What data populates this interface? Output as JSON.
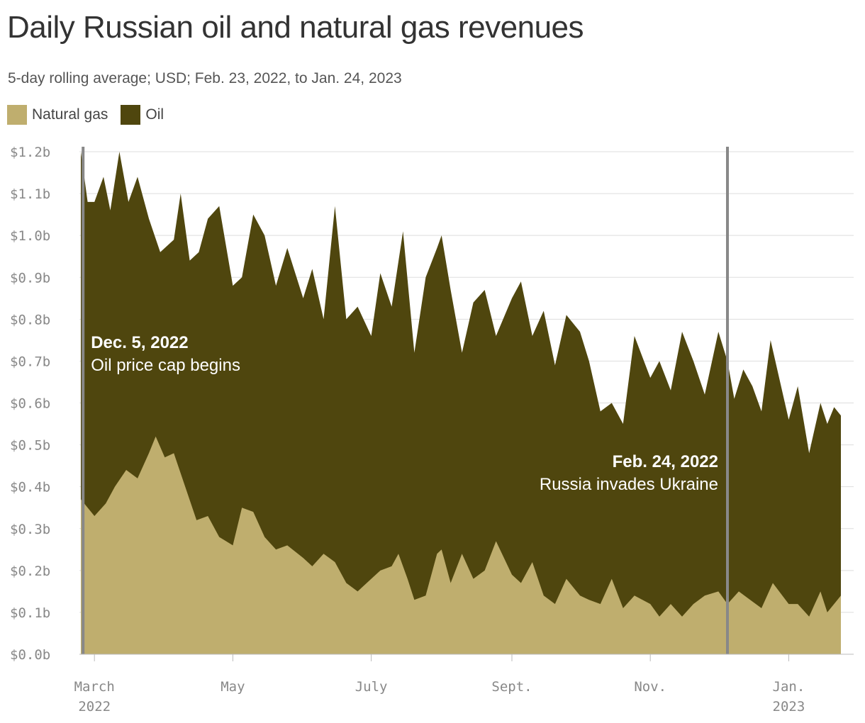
{
  "title": "Daily Russian oil and natural gas revenues",
  "subtitle": "5-day rolling average; USD; Feb. 23, 2022, to Jan. 24, 2023",
  "legend": [
    {
      "label": "Natural gas",
      "color": "#bfae6e"
    },
    {
      "label": "Oil",
      "color": "#4f460e"
    }
  ],
  "annotations": [
    {
      "date": "2022-12-05",
      "title": "Dec. 5, 2022",
      "text": "Oil price cap begins"
    },
    {
      "date": "2022-02-24",
      "title": "Feb. 24, 2022",
      "text": "Russia invades Ukraine"
    }
  ],
  "chart_data": {
    "type": "area",
    "stacked": true,
    "title": "Daily Russian oil and natural gas revenues",
    "x_range": [
      "2022-02-23",
      "2023-01-24"
    ],
    "ylim": [
      0,
      1.2
    ],
    "y_unit": "USD billions",
    "y_ticks": [
      "$0.0b",
      "$0.1b",
      "$0.2b",
      "$0.3b",
      "$0.4b",
      "$0.5b",
      "$0.6b",
      "$0.7b",
      "$0.8b",
      "$0.9b",
      "$1.0b",
      "$1.1b",
      "$1.2b"
    ],
    "x_ticks": [
      {
        "date": "2022-03-01",
        "line1": "March",
        "line2": "2022"
      },
      {
        "date": "2022-05-01",
        "line1": "May",
        "line2": ""
      },
      {
        "date": "2022-07-01",
        "line1": "July",
        "line2": ""
      },
      {
        "date": "2022-09-01",
        "line1": "Sept.",
        "line2": ""
      },
      {
        "date": "2022-11-01",
        "line1": "Nov.",
        "line2": ""
      },
      {
        "date": "2023-01-01",
        "line1": "Jan.",
        "line2": "2023"
      }
    ],
    "grid": true,
    "legend_position": "top-left",
    "series": [
      {
        "name": "Natural gas",
        "color": "#bfae6e",
        "points": [
          [
            "2022-02-23",
            0.37
          ],
          [
            "2022-03-01",
            0.33
          ],
          [
            "2022-03-06",
            0.36
          ],
          [
            "2022-03-10",
            0.4
          ],
          [
            "2022-03-15",
            0.44
          ],
          [
            "2022-03-20",
            0.42
          ],
          [
            "2022-03-25",
            0.48
          ],
          [
            "2022-03-28",
            0.52
          ],
          [
            "2022-04-01",
            0.47
          ],
          [
            "2022-04-05",
            0.48
          ],
          [
            "2022-04-10",
            0.4
          ],
          [
            "2022-04-15",
            0.32
          ],
          [
            "2022-04-20",
            0.33
          ],
          [
            "2022-04-25",
            0.28
          ],
          [
            "2022-05-01",
            0.26
          ],
          [
            "2022-05-05",
            0.35
          ],
          [
            "2022-05-10",
            0.34
          ],
          [
            "2022-05-15",
            0.28
          ],
          [
            "2022-05-20",
            0.25
          ],
          [
            "2022-05-25",
            0.26
          ],
          [
            "2022-06-01",
            0.23
          ],
          [
            "2022-06-05",
            0.21
          ],
          [
            "2022-06-10",
            0.24
          ],
          [
            "2022-06-15",
            0.22
          ],
          [
            "2022-06-20",
            0.17
          ],
          [
            "2022-06-25",
            0.15
          ],
          [
            "2022-07-01",
            0.18
          ],
          [
            "2022-07-05",
            0.2
          ],
          [
            "2022-07-10",
            0.21
          ],
          [
            "2022-07-13",
            0.24
          ],
          [
            "2022-07-17",
            0.18
          ],
          [
            "2022-07-20",
            0.13
          ],
          [
            "2022-07-25",
            0.14
          ],
          [
            "2022-07-30",
            0.24
          ],
          [
            "2022-08-01",
            0.25
          ],
          [
            "2022-08-05",
            0.17
          ],
          [
            "2022-08-10",
            0.24
          ],
          [
            "2022-08-15",
            0.18
          ],
          [
            "2022-08-20",
            0.2
          ],
          [
            "2022-08-25",
            0.27
          ],
          [
            "2022-09-01",
            0.19
          ],
          [
            "2022-09-05",
            0.17
          ],
          [
            "2022-09-10",
            0.22
          ],
          [
            "2022-09-15",
            0.14
          ],
          [
            "2022-09-20",
            0.12
          ],
          [
            "2022-09-25",
            0.18
          ],
          [
            "2022-10-01",
            0.14
          ],
          [
            "2022-10-05",
            0.13
          ],
          [
            "2022-10-10",
            0.12
          ],
          [
            "2022-10-15",
            0.18
          ],
          [
            "2022-10-20",
            0.11
          ],
          [
            "2022-10-25",
            0.14
          ],
          [
            "2022-11-01",
            0.12
          ],
          [
            "2022-11-05",
            0.09
          ],
          [
            "2022-11-10",
            0.12
          ],
          [
            "2022-11-15",
            0.09
          ],
          [
            "2022-11-20",
            0.12
          ],
          [
            "2022-11-25",
            0.14
          ],
          [
            "2022-12-01",
            0.15
          ],
          [
            "2022-12-05",
            0.12
          ],
          [
            "2022-12-10",
            0.15
          ],
          [
            "2022-12-15",
            0.13
          ],
          [
            "2022-12-20",
            0.11
          ],
          [
            "2022-12-25",
            0.17
          ],
          [
            "2023-01-01",
            0.12
          ],
          [
            "2023-01-05",
            0.12
          ],
          [
            "2023-01-10",
            0.09
          ],
          [
            "2023-01-15",
            0.15
          ],
          [
            "2023-01-18",
            0.1
          ],
          [
            "2023-01-21",
            0.12
          ],
          [
            "2023-01-24",
            0.14
          ]
        ]
      },
      {
        "name": "Oil",
        "color": "#4f460e",
        "points": [
          [
            "2022-02-23",
            1.2
          ],
          [
            "2022-02-26",
            1.08
          ],
          [
            "2022-03-01",
            1.08
          ],
          [
            "2022-03-05",
            1.14
          ],
          [
            "2022-03-08",
            1.06
          ],
          [
            "2022-03-12",
            1.2
          ],
          [
            "2022-03-16",
            1.08
          ],
          [
            "2022-03-20",
            1.14
          ],
          [
            "2022-03-25",
            1.04
          ],
          [
            "2022-03-30",
            0.96
          ],
          [
            "2022-04-05",
            0.99
          ],
          [
            "2022-04-08",
            1.1
          ],
          [
            "2022-04-12",
            0.94
          ],
          [
            "2022-04-16",
            0.96
          ],
          [
            "2022-04-20",
            1.04
          ],
          [
            "2022-04-25",
            1.07
          ],
          [
            "2022-05-01",
            0.88
          ],
          [
            "2022-05-05",
            0.9
          ],
          [
            "2022-05-10",
            1.05
          ],
          [
            "2022-05-15",
            1.0
          ],
          [
            "2022-05-20",
            0.88
          ],
          [
            "2022-05-25",
            0.97
          ],
          [
            "2022-06-01",
            0.85
          ],
          [
            "2022-06-05",
            0.92
          ],
          [
            "2022-06-10",
            0.8
          ],
          [
            "2022-06-15",
            1.07
          ],
          [
            "2022-06-20",
            0.8
          ],
          [
            "2022-06-25",
            0.83
          ],
          [
            "2022-07-01",
            0.76
          ],
          [
            "2022-07-05",
            0.91
          ],
          [
            "2022-07-10",
            0.83
          ],
          [
            "2022-07-15",
            1.01
          ],
          [
            "2022-07-20",
            0.72
          ],
          [
            "2022-07-25",
            0.9
          ],
          [
            "2022-07-30",
            0.97
          ],
          [
            "2022-08-01",
            1.0
          ],
          [
            "2022-08-05",
            0.87
          ],
          [
            "2022-08-10",
            0.72
          ],
          [
            "2022-08-15",
            0.84
          ],
          [
            "2022-08-20",
            0.87
          ],
          [
            "2022-08-25",
            0.76
          ],
          [
            "2022-09-01",
            0.85
          ],
          [
            "2022-09-05",
            0.89
          ],
          [
            "2022-09-10",
            0.76
          ],
          [
            "2022-09-15",
            0.82
          ],
          [
            "2022-09-20",
            0.69
          ],
          [
            "2022-09-25",
            0.81
          ],
          [
            "2022-10-01",
            0.77
          ],
          [
            "2022-10-05",
            0.7
          ],
          [
            "2022-10-10",
            0.58
          ],
          [
            "2022-10-15",
            0.6
          ],
          [
            "2022-10-20",
            0.55
          ],
          [
            "2022-10-25",
            0.76
          ],
          [
            "2022-11-01",
            0.66
          ],
          [
            "2022-11-05",
            0.7
          ],
          [
            "2022-11-10",
            0.63
          ],
          [
            "2022-11-15",
            0.77
          ],
          [
            "2022-11-20",
            0.7
          ],
          [
            "2022-11-25",
            0.62
          ],
          [
            "2022-12-01",
            0.77
          ],
          [
            "2022-12-05",
            0.7
          ],
          [
            "2022-12-08",
            0.61
          ],
          [
            "2022-12-12",
            0.68
          ],
          [
            "2022-12-16",
            0.64
          ],
          [
            "2022-12-20",
            0.58
          ],
          [
            "2022-12-24",
            0.75
          ],
          [
            "2023-01-01",
            0.56
          ],
          [
            "2023-01-05",
            0.64
          ],
          [
            "2023-01-10",
            0.48
          ],
          [
            "2023-01-15",
            0.6
          ],
          [
            "2023-01-18",
            0.55
          ],
          [
            "2023-01-21",
            0.59
          ],
          [
            "2023-01-24",
            0.57
          ]
        ]
      }
    ]
  }
}
